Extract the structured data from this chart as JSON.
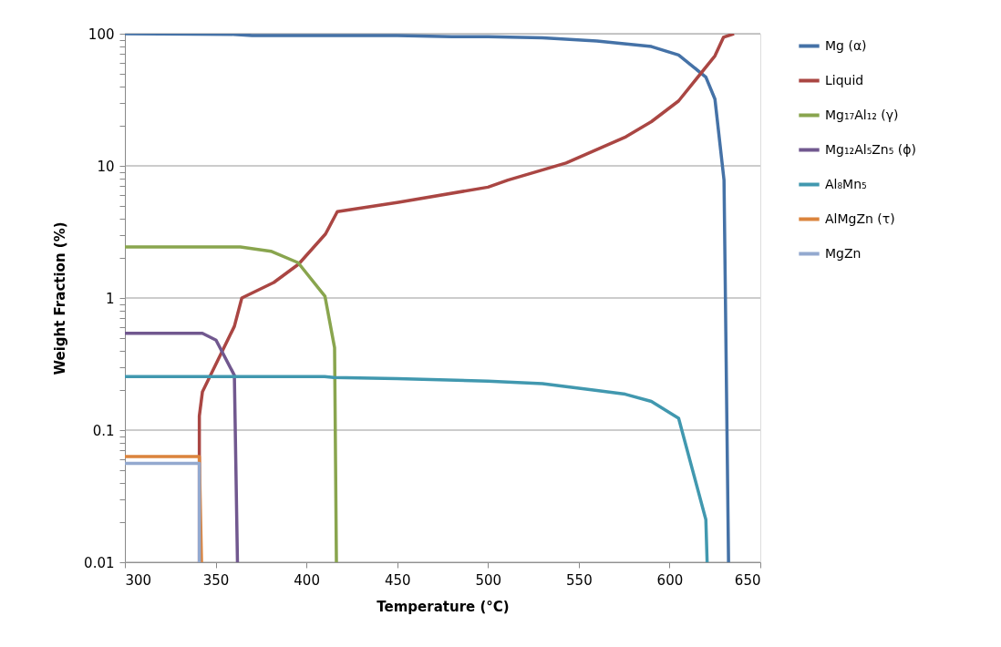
{
  "chart_data": {
    "type": "line",
    "xlabel": "Temperature (°C)",
    "ylabel": "Weight Fraction (%)",
    "log": "y",
    "grid": "y",
    "legend": "right",
    "line_style": "solid",
    "marker": "none",
    "xlim": [
      300,
      650
    ],
    "xticks": [
      300,
      350,
      400,
      450,
      500,
      550,
      600,
      650
    ],
    "ylim": [
      0.01,
      100
    ],
    "yticks": [
      0.01,
      {
        "value": 0.02,
        "label": null
      },
      {
        "value": 0.03,
        "label": null
      },
      {
        "value": 0.04,
        "label": null
      },
      {
        "value": 0.05,
        "label": null
      },
      {
        "value": 0.06,
        "label": null
      },
      {
        "value": 0.07,
        "label": null
      },
      {
        "value": 0.08,
        "label": null
      },
      {
        "value": 0.09,
        "label": null
      },
      0.1,
      {
        "value": 0.2,
        "label": null
      },
      {
        "value": 0.3,
        "label": null
      },
      {
        "value": 0.4,
        "label": null
      },
      {
        "value": 0.5,
        "label": null
      },
      {
        "value": 0.6,
        "label": null
      },
      {
        "value": 0.7,
        "label": null
      },
      {
        "value": 0.8,
        "label": null
      },
      {
        "value": 0.9,
        "label": null
      },
      1,
      {
        "value": 2,
        "label": null
      },
      {
        "value": 3,
        "label": null
      },
      {
        "value": 4,
        "label": null
      },
      {
        "value": 5,
        "label": null
      },
      {
        "value": 6,
        "label": null
      },
      {
        "value": 7,
        "label": null
      },
      {
        "value": 8,
        "label": null
      },
      {
        "value": 9,
        "label": null
      },
      10,
      {
        "value": 20,
        "label": null
      },
      {
        "value": 30,
        "label": null
      },
      {
        "value": 40,
        "label": null
      },
      {
        "value": 50,
        "label": null
      },
      {
        "value": 60,
        "label": null
      },
      {
        "value": 70,
        "label": null
      },
      {
        "value": 80,
        "label": null
      },
      {
        "value": 90,
        "label": null
      },
      100
    ],
    "series": [
      {
        "name": "Mg (α)",
        "color": "#4572a7",
        "x": [
          300,
          360,
          370,
          450,
          480,
          500,
          530,
          560,
          590,
          605,
          620,
          625,
          630,
          632.5
        ],
        "values": [
          100,
          99,
          97,
          97,
          95,
          95,
          93,
          88,
          80,
          69,
          47,
          32,
          7.8,
          0.01
        ]
      },
      {
        "name": "Liquid",
        "color": "#aa4643",
        "x": [
          341,
          341,
          342.7,
          360.3,
          364.4,
          382,
          395.6,
          410.5,
          417,
          450.7,
          500,
          511,
          543,
          576,
          590,
          605,
          625,
          629.7,
          635.5
        ],
        "values": [
          0.01,
          0.128,
          0.195,
          0.61,
          1.0,
          1.31,
          1.8,
          3.05,
          4.5,
          5.3,
          6.9,
          7.8,
          10.5,
          16.6,
          21.6,
          31,
          68,
          94,
          100
        ]
      },
      {
        "name": "Mg₁₇Al₁₂ (γ)",
        "color": "#89a54e",
        "x": [
          300,
          363.6,
          380.4,
          395.4,
          410.2,
          415.5,
          416.5
        ],
        "values": [
          2.43,
          2.43,
          2.26,
          1.85,
          1.03,
          0.42,
          0.01
        ]
      },
      {
        "name": "Mg₁₂Al₅Zn₅ (ϕ)",
        "color": "#71588f",
        "x": [
          300,
          342.7,
          350.2,
          360.3,
          362
        ],
        "values": [
          0.54,
          0.54,
          0.48,
          0.26,
          0.01
        ]
      },
      {
        "name": "Al₈Mn₅",
        "color": "#4198af",
        "x": [
          300,
          410,
          415,
          450,
          500,
          530,
          559,
          575.6,
          590,
          605,
          620,
          620.7
        ],
        "values": [
          0.254,
          0.254,
          0.25,
          0.245,
          0.235,
          0.225,
          0.2,
          0.187,
          0.165,
          0.123,
          0.021,
          0.01
        ]
      },
      {
        "name": "AlMgZn (τ)",
        "color": "#db843d",
        "x": [
          300,
          341,
          342.2
        ],
        "values": [
          0.063,
          0.063,
          0.01
        ]
      },
      {
        "name": "MgZn",
        "color": "#93a9cf",
        "x": [
          300,
          341,
          341
        ],
        "values": [
          0.056,
          0.056,
          0.01
        ]
      }
    ]
  }
}
